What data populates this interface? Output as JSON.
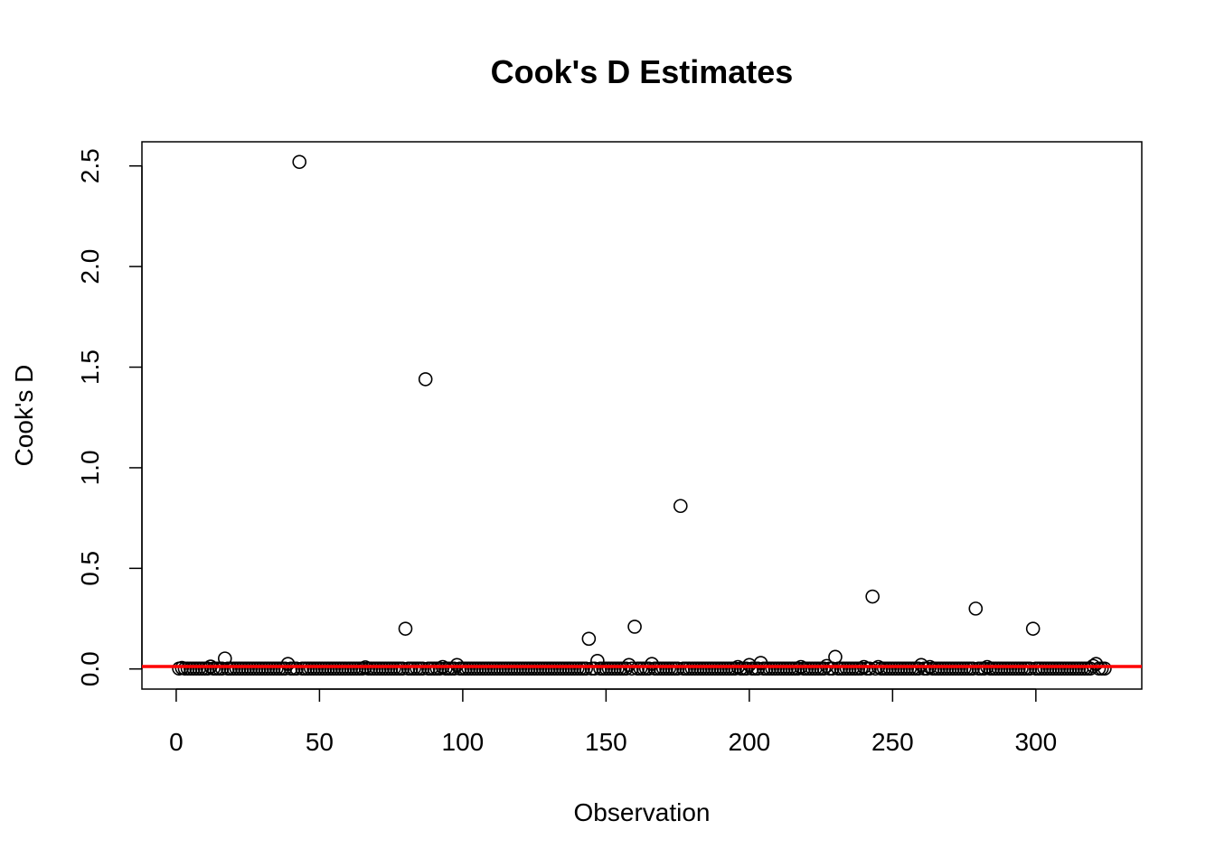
{
  "chart_data": {
    "type": "scatter",
    "title": "Cook's D Estimates",
    "xlabel": "Observation",
    "ylabel": "Cook's D",
    "xlim": [
      -11.96,
      336.96
    ],
    "ylim": [
      -0.1,
      2.62
    ],
    "x_ticks": [
      0,
      50,
      100,
      150,
      200,
      250,
      300
    ],
    "y_ticks": [
      0.0,
      0.5,
      1.0,
      1.5,
      2.0,
      2.5
    ],
    "y_tick_labels": [
      "0.0",
      "0.5",
      "1.0",
      "1.5",
      "2.0",
      "2.5"
    ],
    "reference_line": {
      "y": 0.0123,
      "color": "#ff0000"
    },
    "n_observations": 324,
    "notable_points": [
      {
        "x": 2,
        "y": 0.005
      },
      {
        "x": 12,
        "y": 0.012
      },
      {
        "x": 17,
        "y": 0.052
      },
      {
        "x": 39,
        "y": 0.025
      },
      {
        "x": 43,
        "y": 2.52
      },
      {
        "x": 66,
        "y": 0.008
      },
      {
        "x": 80,
        "y": 0.2
      },
      {
        "x": 87,
        "y": 1.44
      },
      {
        "x": 93,
        "y": 0.01
      },
      {
        "x": 98,
        "y": 0.02
      },
      {
        "x": 144,
        "y": 0.15
      },
      {
        "x": 147,
        "y": 0.04
      },
      {
        "x": 158,
        "y": 0.02
      },
      {
        "x": 160,
        "y": 0.21
      },
      {
        "x": 166,
        "y": 0.025
      },
      {
        "x": 176,
        "y": 0.81
      },
      {
        "x": 196,
        "y": 0.01
      },
      {
        "x": 200,
        "y": 0.02
      },
      {
        "x": 204,
        "y": 0.03
      },
      {
        "x": 218,
        "y": 0.01
      },
      {
        "x": 227,
        "y": 0.015
      },
      {
        "x": 230,
        "y": 0.06
      },
      {
        "x": 240,
        "y": 0.01
      },
      {
        "x": 243,
        "y": 0.36
      },
      {
        "x": 245,
        "y": 0.01
      },
      {
        "x": 260,
        "y": 0.02
      },
      {
        "x": 263,
        "y": 0.01
      },
      {
        "x": 279,
        "y": 0.3
      },
      {
        "x": 283,
        "y": 0.01
      },
      {
        "x": 299,
        "y": 0.2
      },
      {
        "x": 320,
        "y": 0.015
      },
      {
        "x": 321,
        "y": 0.025
      }
    ],
    "baseline_value": 0.002,
    "point_style": {
      "shape": "open-circle",
      "stroke": "#000000",
      "fill": "none"
    },
    "grid": false,
    "legend": "none"
  }
}
